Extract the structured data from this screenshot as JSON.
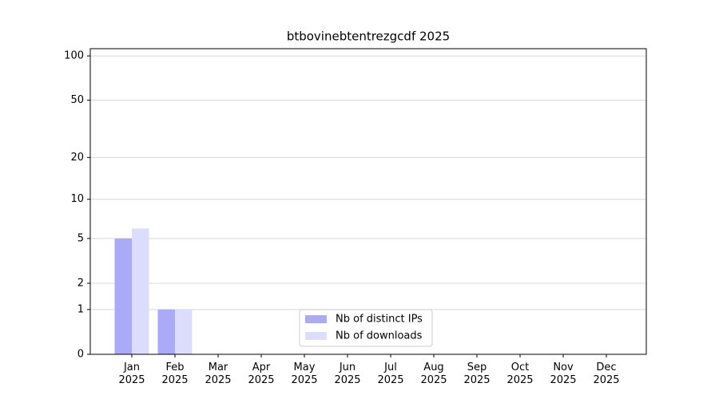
{
  "chart_data": {
    "type": "bar",
    "title": "btbovinebtentrezgcdf 2025",
    "categories": [
      "Jan\n2025",
      "Feb\n2025",
      "Mar\n2025",
      "Apr\n2025",
      "May\n2025",
      "Jun\n2025",
      "Jul\n2025",
      "Aug\n2025",
      "Sep\n2025",
      "Oct\n2025",
      "Nov\n2025",
      "Dec\n2025"
    ],
    "series": [
      {
        "name": "Nb of distinct IPs",
        "color": "#aaaaf8",
        "values": [
          5,
          1,
          0,
          0,
          0,
          0,
          0,
          0,
          0,
          0,
          0,
          0
        ]
      },
      {
        "name": "Nb of downloads",
        "color": "#dcdcfc",
        "values": [
          6,
          1,
          0,
          0,
          0,
          0,
          0,
          0,
          0,
          0,
          0,
          0
        ]
      }
    ],
    "yscale": "log1p",
    "ylim": [
      0,
      112
    ],
    "yticks": [
      0,
      1,
      2,
      5,
      10,
      20,
      50,
      100
    ],
    "grid": true,
    "legend": "lower center"
  }
}
